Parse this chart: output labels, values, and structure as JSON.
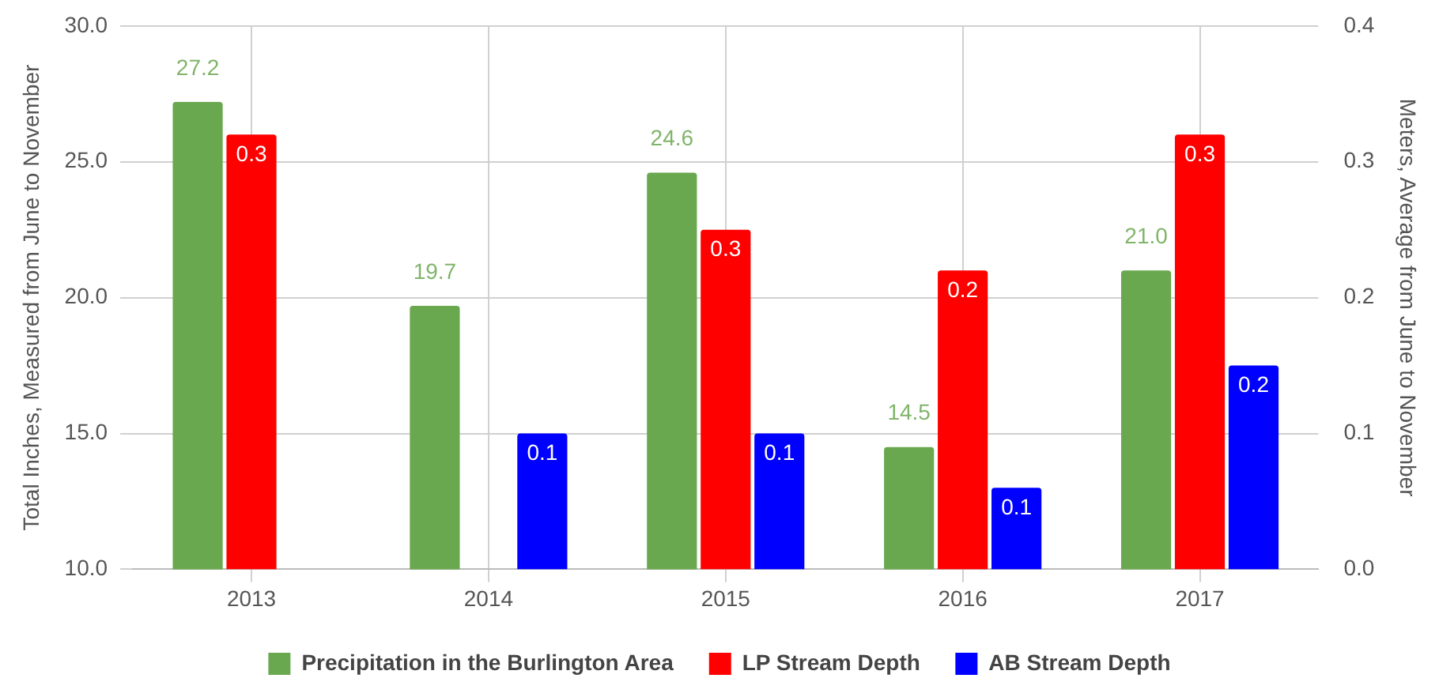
{
  "chart_data": {
    "type": "bar",
    "categories": [
      "2013",
      "2014",
      "2015",
      "2016",
      "2017"
    ],
    "ylabel": "Total Inches, Measured from June to November",
    "y2label": "Meters, Average from June to November",
    "ylim": [
      10,
      30
    ],
    "yticks": [
      {
        "value": 10,
        "label": "10.0"
      },
      {
        "value": 15,
        "label": "15.0"
      },
      {
        "value": 20,
        "label": "20.0"
      },
      {
        "value": 25,
        "label": "25.0"
      },
      {
        "value": 30,
        "label": "30.0"
      }
    ],
    "y2lim": [
      0,
      0.4
    ],
    "y2ticks": [
      {
        "value": 0,
        "label": "0.0"
      },
      0.1,
      0.2,
      0.3,
      0.4
    ],
    "series": [
      {
        "name": "Precipitation in the Burlington Area",
        "color": "#6aa84f",
        "values": [
          27.2,
          19.7,
          24.6,
          14.5,
          21.0
        ],
        "value_labels": [
          "27.2",
          "19.7",
          "24.6",
          "14.5",
          "21.0"
        ]
      },
      {
        "name": "LP Stream Depth",
        "color": "#ff0000",
        "axis": "y2",
        "values": [
          0.32,
          null,
          0.25,
          0.22,
          0.32
        ],
        "value_labels": [
          "0.3",
          null,
          "0.3",
          "0.2",
          "0.3"
        ]
      },
      {
        "name": "AB Stream Depth",
        "color": "#0000ff",
        "axis": "y2",
        "values": [
          null,
          0.1,
          0.1,
          0.06,
          0.15
        ],
        "value_labels": [
          null,
          "0.1",
          "0.1",
          "0.1",
          "0.2"
        ]
      }
    ],
    "grid": true,
    "legend": "bottom"
  }
}
